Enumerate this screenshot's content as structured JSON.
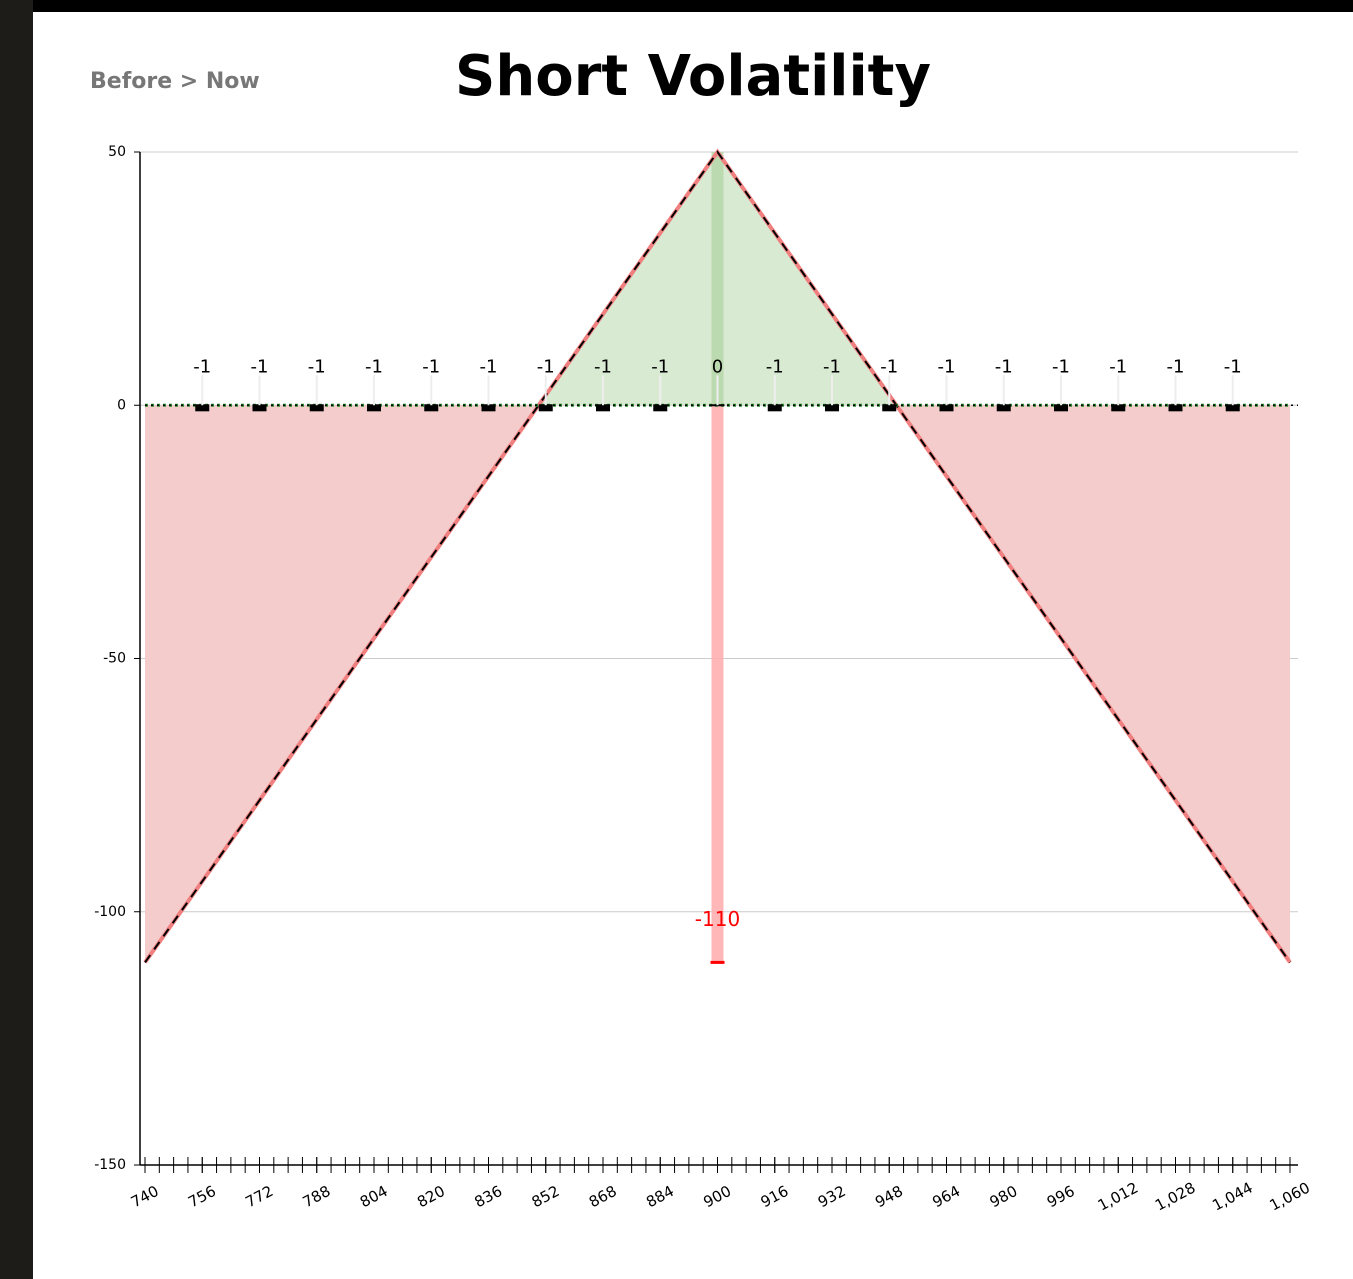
{
  "header": {
    "nav": "Before > Now"
  },
  "chart_data": {
    "type": "payoff",
    "title": "Short Volatility",
    "x": [
      740,
      850,
      900,
      950,
      1060
    ],
    "values": [
      -110,
      0,
      50,
      0,
      -110
    ],
    "color": "#f08080",
    "profit_color": "#d9ead3",
    "loss_color": "#f4cccc",
    "bars": {
      "x": [
        756,
        772,
        788,
        804,
        820,
        836,
        852,
        868,
        884,
        900,
        916,
        932,
        948,
        964,
        980,
        996,
        1012,
        1028,
        1044
      ],
      "values": [
        -1,
        -1,
        -1,
        -1,
        -1,
        -1,
        -1,
        -1,
        -1,
        0,
        -1,
        -1,
        -1,
        -1,
        -1,
        -1,
        -1,
        -1,
        -1
      ],
      "color": "#000000"
    },
    "range_bars": [
      {
        "x": 900,
        "value": 50,
        "color": "#b6d7a8"
      },
      {
        "x": 900,
        "value": -110,
        "color": "#ffaaaa",
        "label_color": "#ff0000"
      }
    ],
    "xlim": [
      740,
      1060
    ],
    "xticks": [
      740,
      756,
      772,
      788,
      804,
      820,
      836,
      852,
      868,
      884,
      900,
      916,
      932,
      948,
      964,
      980,
      996,
      {
        "value": 1012,
        "label": "1,012"
      },
      {
        "value": 1028,
        "label": "1,028"
      },
      {
        "value": 1044,
        "label": "1,044"
      },
      {
        "value": 1060,
        "label": "1,060"
      }
    ],
    "xminor_step": 4,
    "ylim": [
      -150,
      50
    ],
    "yticks": [
      -150,
      -100,
      -50,
      0,
      50
    ],
    "grid": true
  }
}
